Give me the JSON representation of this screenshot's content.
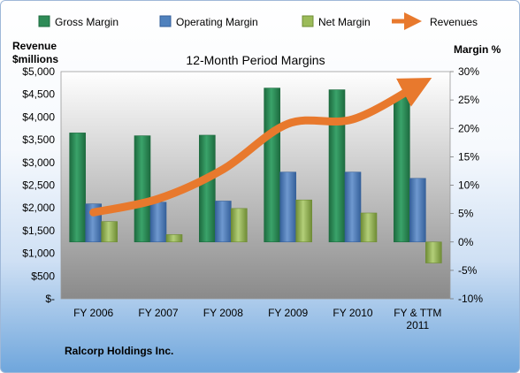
{
  "chart_data": {
    "type": "bar",
    "title": "12-Month Period Margins",
    "company": "Ralcorp Holdings Inc.",
    "left_axis_label": [
      "Revenue",
      "$millions"
    ],
    "right_axis_label": "Margin %",
    "categories": [
      "FY 2006",
      "FY 2007",
      "FY 2008",
      "FY 2009",
      "FY 2010",
      "FY & TTM 2011"
    ],
    "left_ticks": [
      "$-",
      "$500",
      "$1,000",
      "$1,500",
      "$2,000",
      "$2,500",
      "$3,000",
      "$3,500",
      "$4,000",
      "$4,500",
      "$5,000"
    ],
    "right_ticks": [
      "-10%",
      "-5%",
      "0%",
      "5%",
      "10%",
      "15%",
      "20%",
      "25%",
      "30%"
    ],
    "left_ylim": [
      0,
      5000
    ],
    "right_ylim": [
      -10,
      30
    ],
    "series": [
      {
        "name": "Gross Margin",
        "kind": "bar",
        "axis": "right",
        "color": "#2e8b57",
        "values": [
          19.2,
          18.7,
          18.8,
          27.1,
          26.8,
          25.8
        ]
      },
      {
        "name": "Operating Margin",
        "kind": "bar",
        "axis": "right",
        "color": "#4f81bd",
        "values": [
          6.7,
          7.0,
          7.2,
          12.3,
          12.3,
          11.2
        ]
      },
      {
        "name": "Net Margin",
        "kind": "bar",
        "axis": "right",
        "color": "#9bbb59",
        "values": [
          3.6,
          1.3,
          5.9,
          7.4,
          5.1,
          -3.7
        ]
      },
      {
        "name": "Revenues",
        "kind": "line",
        "axis": "left",
        "color": "#e8792d",
        "values": [
          1900,
          2200,
          2850,
          3850,
          3950,
          4700
        ]
      }
    ],
    "legend_position": "top",
    "grid": false
  }
}
